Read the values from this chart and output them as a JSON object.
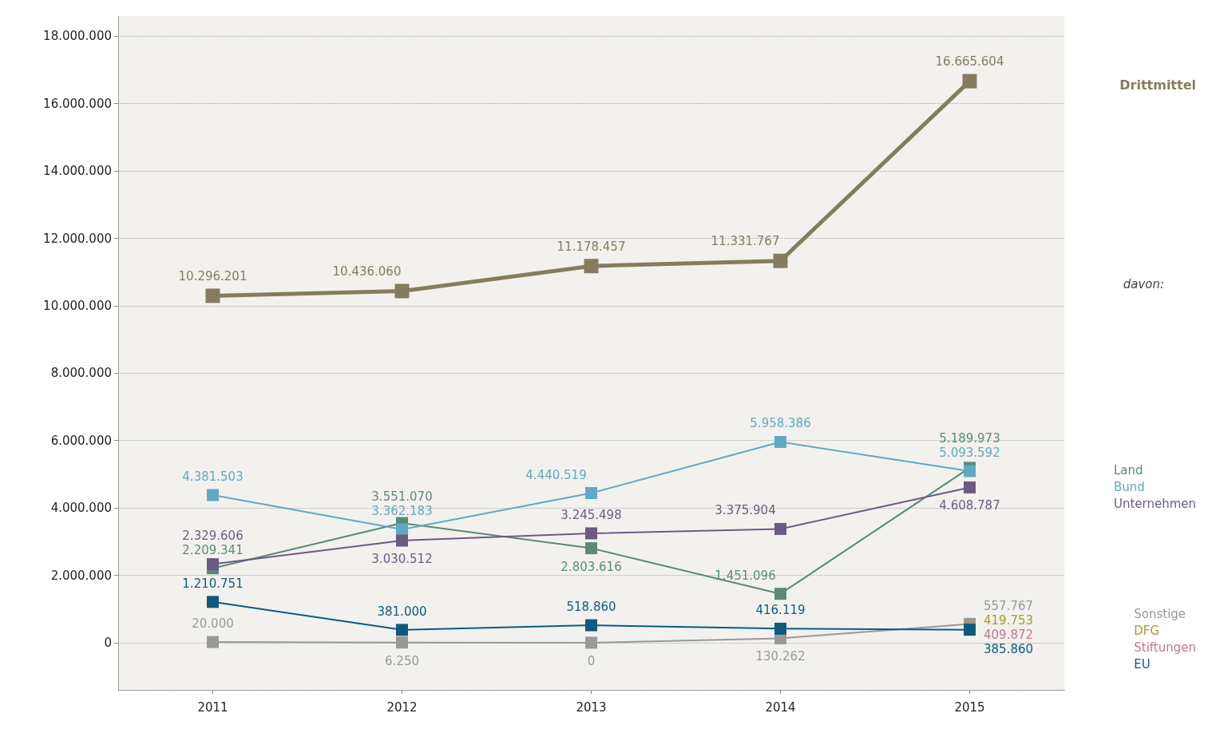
{
  "chart_data": {
    "type": "line",
    "categories": [
      "2011",
      "2012",
      "2013",
      "2014",
      "2015"
    ],
    "series": [
      {
        "name": "Drittmittel",
        "color": "#857b5e",
        "values": [
          10296201,
          10436060,
          11178457,
          11331767,
          16665604
        ],
        "value_labels": [
          "10.296.201",
          "10.436.060",
          "11.178.457",
          "11.331.767",
          "16.665.604"
        ]
      },
      {
        "name": "Land",
        "color": "#5b8a77",
        "values": [
          2209341,
          3551070,
          2803616,
          1451096,
          5189973
        ],
        "value_labels": [
          "2.209.341",
          "3.551.070",
          "2.803.616",
          "1.451.096",
          "5.189.973"
        ]
      },
      {
        "name": "Bund",
        "color": "#5fa9c4",
        "values": [
          4381503,
          3362183,
          4440519,
          5958386,
          5093592
        ],
        "value_labels": [
          "4.381.503",
          "3.362.183",
          "4.440.519",
          "5.958.386",
          "5.093.592"
        ]
      },
      {
        "name": "Unternehmen",
        "color": "#6c5a82",
        "values": [
          2329606,
          3030512,
          3245498,
          3375904,
          4608787
        ],
        "value_labels": [
          "2.329.606",
          "3.030.512",
          "3.245.498",
          "3.375.904",
          "4.608.787"
        ]
      },
      {
        "name": "Sonstige",
        "color": "#999999",
        "values": [
          20000,
          6250,
          0,
          130262,
          557767
        ],
        "value_labels": [
          "20.000",
          "6.250",
          "0",
          "130.262",
          "557.767"
        ]
      },
      {
        "name": "DFG",
        "color": "#a89c2c",
        "values": [
          null,
          null,
          null,
          null,
          419753
        ],
        "value_labels": [
          null,
          null,
          null,
          null,
          "419.753"
        ]
      },
      {
        "name": "Stiftungen",
        "color": "#c4788a",
        "values": [
          null,
          null,
          null,
          null,
          409872
        ],
        "value_labels": [
          null,
          null,
          null,
          null,
          "409.872"
        ]
      },
      {
        "name": "EU",
        "color": "#0f5b80",
        "values": [
          1210751,
          381000,
          518860,
          416119,
          385860
        ],
        "value_labels": [
          "1.210.751",
          "381.000",
          "518.860",
          "416.119",
          "385.860"
        ]
      }
    ],
    "ylim": [
      -1400000,
      18600000
    ],
    "yticks": [
      {
        "value": 0,
        "label": "0"
      },
      {
        "value": 2000000,
        "label": "2.000.000"
      },
      {
        "value": 4000000,
        "label": "4.000.000"
      },
      {
        "value": 6000000,
        "label": "6.000.000"
      },
      {
        "value": 8000000,
        "label": "8.000.000"
      },
      {
        "value": 10000000,
        "label": "10.000.000"
      },
      {
        "value": 12000000,
        "label": "12.000.000"
      },
      {
        "value": 14000000,
        "label": "14.000.000"
      },
      {
        "value": 16000000,
        "label": "16.000.000"
      },
      {
        "value": 18000000,
        "label": "18.000.000"
      }
    ],
    "grid": "y",
    "legend": "right",
    "marker": "square",
    "line_style": "solid",
    "annotations": [
      "davon:"
    ]
  }
}
